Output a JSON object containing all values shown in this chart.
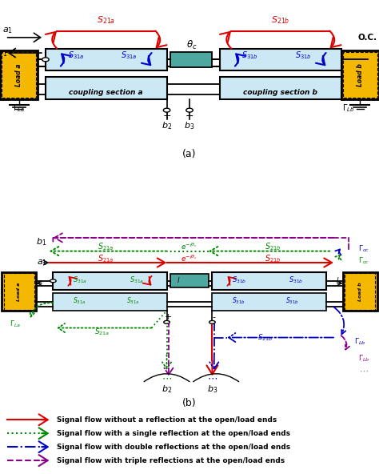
{
  "fig_width": 4.74,
  "fig_height": 5.92,
  "background": "#ffffff",
  "legend_entries": [
    {
      "label": "Signal flow without a reflection at the open/load ends",
      "color": "#dd0000",
      "linestyle": "-"
    },
    {
      "label": "Signal flow with a single reflection at the open/load ends",
      "color": "#008800",
      "linestyle": ":"
    },
    {
      "label": "Signal flow with double reflections at the open/load ends",
      "color": "#0000cc",
      "linestyle": "-."
    },
    {
      "label": "Signal flow with triple reflections at the open/load ends",
      "color": "#880088",
      "linestyle": "--"
    }
  ],
  "coupler_face": "#cce8f4",
  "coupler_edge": "#000000",
  "phase_face": "#4fa8a0",
  "load_face": "#f5b800",
  "load_edge": "#000000",
  "red": "#dd0000",
  "green": "#008800",
  "blue": "#0000cc",
  "purple": "#880088",
  "gray": "#888888"
}
